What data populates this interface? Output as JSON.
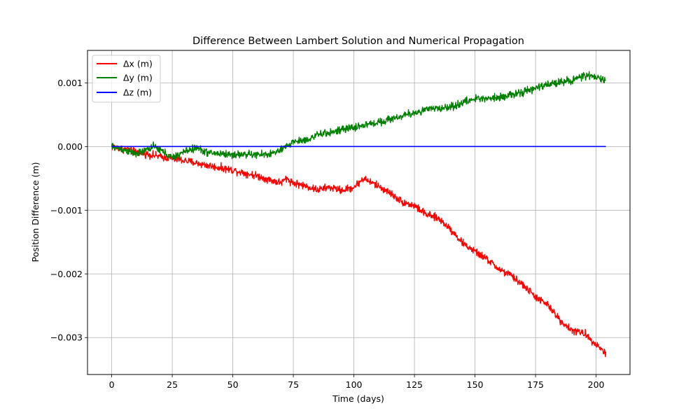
{
  "chart_data": {
    "type": "line",
    "title": "Difference Between Lambert Solution and Numerical Propagation",
    "xlabel": "Time (days)",
    "ylabel": "Position Difference (m)",
    "xlim": [
      -10,
      214
    ],
    "ylim": [
      -0.00358,
      0.00151
    ],
    "xticks": [
      0,
      25,
      50,
      75,
      100,
      125,
      150,
      175,
      200
    ],
    "xtick_labels": [
      "0",
      "25",
      "50",
      "75",
      "100",
      "125",
      "150",
      "175",
      "200"
    ],
    "yticks": [
      0.001,
      0.0,
      -0.001,
      -0.002,
      -0.003
    ],
    "ytick_labels": [
      "0.001",
      "0.000",
      "−0.001",
      "−0.002",
      "−0.003"
    ],
    "grid": true,
    "legend_position": "top-left",
    "series": [
      {
        "name": "Δx (m)",
        "color": "#ff0000",
        "noise": 4.5e-05,
        "x": [
          0,
          10,
          20,
          30,
          40,
          50,
          60,
          65,
          70,
          72,
          75,
          80,
          85,
          90,
          95,
          100,
          104,
          110,
          115,
          120,
          125,
          130,
          135,
          140,
          145,
          150,
          155,
          160,
          165,
          170,
          175,
          180,
          185,
          190,
          195,
          200,
          204
        ],
        "values": [
          0.0,
          -8e-05,
          -0.00016,
          -0.00022,
          -0.0003,
          -0.00037,
          -0.00046,
          -0.00052,
          -0.00057,
          -0.0005,
          -0.00057,
          -0.00062,
          -0.00068,
          -0.00064,
          -0.00069,
          -0.00064,
          -0.0005,
          -0.00062,
          -0.00073,
          -0.00087,
          -0.00093,
          -0.00107,
          -0.00113,
          -0.0013,
          -0.00152,
          -0.00165,
          -0.00177,
          -0.00193,
          -0.00203,
          -0.00218,
          -0.00236,
          -0.00249,
          -0.00272,
          -0.00289,
          -0.00293,
          -0.0031,
          -0.00325
        ]
      },
      {
        "name": "Δy (m)",
        "color": "#008000",
        "noise": 4.5e-05,
        "x": [
          0,
          5,
          10,
          13,
          17,
          20,
          25,
          30,
          35,
          40,
          45,
          50,
          55,
          60,
          65,
          70,
          75,
          80,
          85,
          90,
          100,
          110,
          120,
          130,
          140,
          145,
          150,
          155,
          160,
          165,
          170,
          175,
          180,
          185,
          190,
          195,
          200,
          204
        ],
        "values": [
          0.0,
          -5e-05,
          -0.00012,
          -8e-05,
          0.0,
          -5e-05,
          -0.00018,
          -8e-05,
          -2e-05,
          -0.0001,
          -0.00011,
          -0.00013,
          -0.00012,
          -0.00013,
          -0.00012,
          -6e-05,
          8e-05,
          0.0001,
          0.00018,
          0.00022,
          0.0003,
          0.00038,
          0.00048,
          0.00058,
          0.00062,
          0.00069,
          0.00075,
          0.00076,
          0.00078,
          0.00081,
          0.00085,
          0.00092,
          0.00097,
          0.00102,
          0.00104,
          0.00111,
          0.00109,
          0.00103
        ]
      },
      {
        "name": "Δz (m)",
        "color": "#0000ff",
        "noise": 0,
        "x": [
          0,
          204
        ],
        "values": [
          0.0,
          0.0
        ]
      }
    ]
  }
}
